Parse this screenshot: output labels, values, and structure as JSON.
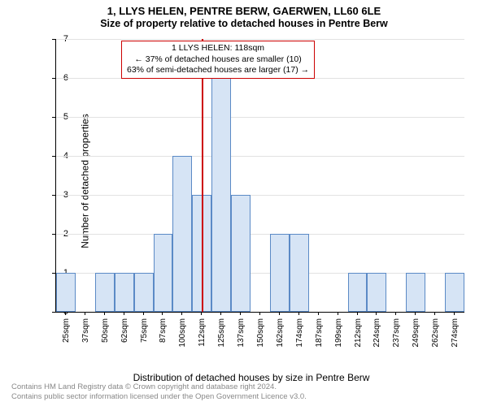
{
  "titles": {
    "line1": "1, LLYS HELEN, PENTRE BERW, GAERWEN, LL60 6LE",
    "line2": "Size of property relative to detached houses in Pentre Berw"
  },
  "chart": {
    "type": "histogram",
    "yaxis": {
      "min": 0,
      "max": 7,
      "ticks": [
        0,
        1,
        2,
        3,
        4,
        5,
        6,
        7
      ],
      "label": "Number of detached properties"
    },
    "xaxis": {
      "label": "Distribution of detached houses by size in Pentre Berw",
      "tick_labels": [
        "25sqm",
        "37sqm",
        "50sqm",
        "62sqm",
        "75sqm",
        "87sqm",
        "100sqm",
        "112sqm",
        "125sqm",
        "137sqm",
        "150sqm",
        "162sqm",
        "174sqm",
        "187sqm",
        "199sqm",
        "212sqm",
        "224sqm",
        "237sqm",
        "249sqm",
        "262sqm",
        "274sqm"
      ]
    },
    "bar_color": "#d6e4f5",
    "bar_border": "#5b8ac6",
    "grid_color": "#e2e2e2",
    "values": [
      1,
      0,
      1,
      1,
      1,
      2,
      4,
      3,
      6,
      3,
      0,
      2,
      2,
      0,
      0,
      1,
      1,
      0,
      1,
      0,
      1
    ],
    "reference_line": {
      "color": "#cc0000",
      "position_index": 7.5,
      "callout": {
        "line1": "1 LLYS HELEN: 118sqm",
        "line2": "← 37% of detached houses are smaller (10)",
        "line3": "63% of semi-detached houses are larger (17) →"
      }
    }
  },
  "footer": {
    "line1": "Contains HM Land Registry data © Crown copyright and database right 2024.",
    "line2": "Contains public sector information licensed under the Open Government Licence v3.0."
  }
}
